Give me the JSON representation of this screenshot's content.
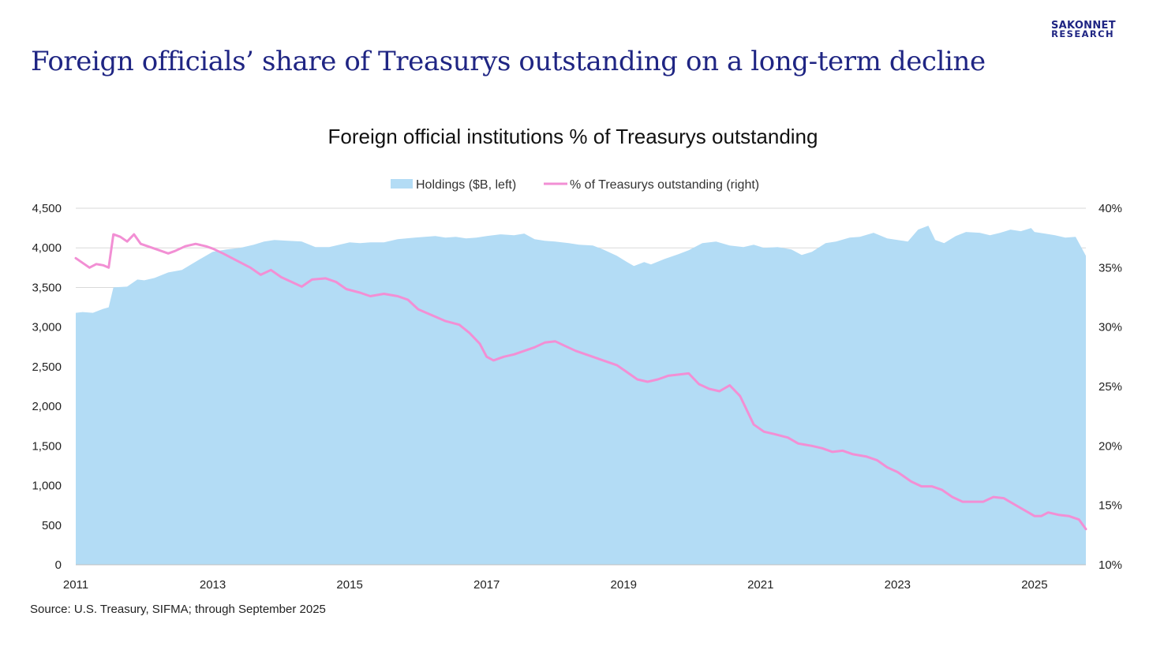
{
  "brand": {
    "line1": "SAKONNET",
    "line2": "RESEARCH"
  },
  "slide_title": "Foreign officials’ share of Treasurys outstanding on a long-term decline",
  "source": "Source: U.S. Treasury, SIFMA; through September 2025",
  "colors": {
    "brand": "#1f2583",
    "area": "#b3dcf5",
    "line": "#f28fd4",
    "grid": "#d9d9d9"
  },
  "chart_data": {
    "type": "area+line",
    "title": "Foreign official institutions % of Treasurys outstanding",
    "legend": [
      "Holdings ($B, left)",
      "% of Treasurys outstanding (right)"
    ],
    "legend_position": "top-center",
    "x_range": [
      2011.0,
      2025.75
    ],
    "x_ticks": [
      2011,
      2013,
      2015,
      2017,
      2019,
      2021,
      2023,
      2025
    ],
    "x_tick_labels": [
      "2011",
      "2013",
      "2015",
      "2017",
      "2019",
      "2021",
      "2023",
      "2025"
    ],
    "y_left": {
      "range": [
        0,
        4500
      ],
      "ticks": [
        0,
        500,
        1000,
        1500,
        2000,
        2500,
        3000,
        3500,
        4000,
        4500
      ],
      "tick_labels": [
        "0",
        "500",
        "1,000",
        "1,500",
        "2,000",
        "2,500",
        "3,000",
        "3,500",
        "4,000",
        "4,500"
      ]
    },
    "y_right": {
      "range": [
        10,
        40
      ],
      "ticks": [
        10,
        15,
        20,
        25,
        30,
        35,
        40
      ],
      "tick_labels": [
        "10%",
        "15%",
        "20%",
        "25%",
        "30%",
        "35%",
        "40%"
      ]
    },
    "grid": true,
    "series": [
      {
        "name": "Holdings ($B, left)",
        "axis": "left",
        "kind": "area",
        "points": [
          [
            2011.0,
            3180
          ],
          [
            2011.1,
            3190
          ],
          [
            2011.25,
            3180
          ],
          [
            2011.4,
            3230
          ],
          [
            2011.48,
            3250
          ],
          [
            2011.55,
            3500
          ],
          [
            2011.75,
            3510
          ],
          [
            2011.9,
            3600
          ],
          [
            2012.0,
            3590
          ],
          [
            2012.15,
            3620
          ],
          [
            2012.35,
            3690
          ],
          [
            2012.55,
            3720
          ],
          [
            2012.8,
            3850
          ],
          [
            2013.0,
            3950
          ],
          [
            2013.2,
            3980
          ],
          [
            2013.4,
            4000
          ],
          [
            2013.6,
            4040
          ],
          [
            2013.75,
            4080
          ],
          [
            2013.9,
            4100
          ],
          [
            2014.1,
            4090
          ],
          [
            2014.3,
            4080
          ],
          [
            2014.5,
            4010
          ],
          [
            2014.7,
            4010
          ],
          [
            2014.85,
            4040
          ],
          [
            2015.0,
            4070
          ],
          [
            2015.15,
            4060
          ],
          [
            2015.3,
            4070
          ],
          [
            2015.5,
            4070
          ],
          [
            2015.7,
            4110
          ],
          [
            2015.95,
            4130
          ],
          [
            2016.1,
            4140
          ],
          [
            2016.25,
            4150
          ],
          [
            2016.4,
            4130
          ],
          [
            2016.55,
            4140
          ],
          [
            2016.7,
            4120
          ],
          [
            2016.85,
            4130
          ],
          [
            2017.0,
            4150
          ],
          [
            2017.2,
            4170
          ],
          [
            2017.4,
            4160
          ],
          [
            2017.55,
            4180
          ],
          [
            2017.7,
            4110
          ],
          [
            2017.85,
            4090
          ],
          [
            2018.0,
            4080
          ],
          [
            2018.2,
            4060
          ],
          [
            2018.35,
            4040
          ],
          [
            2018.55,
            4030
          ],
          [
            2018.7,
            3980
          ],
          [
            2018.9,
            3900
          ],
          [
            2019.05,
            3820
          ],
          [
            2019.15,
            3770
          ],
          [
            2019.3,
            3820
          ],
          [
            2019.4,
            3790
          ],
          [
            2019.6,
            3860
          ],
          [
            2019.8,
            3920
          ],
          [
            2019.95,
            3970
          ],
          [
            2020.15,
            4060
          ],
          [
            2020.35,
            4080
          ],
          [
            2020.55,
            4030
          ],
          [
            2020.75,
            4010
          ],
          [
            2020.9,
            4040
          ],
          [
            2021.05,
            4000
          ],
          [
            2021.25,
            4010
          ],
          [
            2021.45,
            3980
          ],
          [
            2021.6,
            3910
          ],
          [
            2021.75,
            3950
          ],
          [
            2021.95,
            4060
          ],
          [
            2022.1,
            4080
          ],
          [
            2022.3,
            4130
          ],
          [
            2022.45,
            4140
          ],
          [
            2022.65,
            4190
          ],
          [
            2022.85,
            4120
          ],
          [
            2023.0,
            4100
          ],
          [
            2023.15,
            4080
          ],
          [
            2023.3,
            4230
          ],
          [
            2023.45,
            4280
          ],
          [
            2023.55,
            4100
          ],
          [
            2023.68,
            4060
          ],
          [
            2023.85,
            4150
          ],
          [
            2024.0,
            4200
          ],
          [
            2024.2,
            4190
          ],
          [
            2024.35,
            4160
          ],
          [
            2024.5,
            4190
          ],
          [
            2024.65,
            4230
          ],
          [
            2024.8,
            4210
          ],
          [
            2024.95,
            4250
          ],
          [
            2025.0,
            4200
          ],
          [
            2025.15,
            4180
          ],
          [
            2025.3,
            4160
          ],
          [
            2025.45,
            4130
          ],
          [
            2025.6,
            4140
          ],
          [
            2025.75,
            3900
          ]
        ]
      },
      {
        "name": "% of Treasurys outstanding (right)",
        "axis": "right",
        "kind": "line",
        "points": [
          [
            2011.0,
            35.8
          ],
          [
            2011.1,
            35.4
          ],
          [
            2011.2,
            35.0
          ],
          [
            2011.3,
            35.3
          ],
          [
            2011.4,
            35.2
          ],
          [
            2011.48,
            35.0
          ],
          [
            2011.55,
            37.8
          ],
          [
            2011.65,
            37.6
          ],
          [
            2011.75,
            37.2
          ],
          [
            2011.85,
            37.8
          ],
          [
            2011.95,
            37.0
          ],
          [
            2012.05,
            36.8
          ],
          [
            2012.2,
            36.5
          ],
          [
            2012.35,
            36.2
          ],
          [
            2012.45,
            36.4
          ],
          [
            2012.6,
            36.8
          ],
          [
            2012.75,
            37.0
          ],
          [
            2012.9,
            36.8
          ],
          [
            2013.0,
            36.6
          ],
          [
            2013.15,
            36.2
          ],
          [
            2013.35,
            35.6
          ],
          [
            2013.55,
            35.0
          ],
          [
            2013.7,
            34.4
          ],
          [
            2013.85,
            34.8
          ],
          [
            2014.0,
            34.2
          ],
          [
            2014.15,
            33.8
          ],
          [
            2014.3,
            33.4
          ],
          [
            2014.45,
            34.0
          ],
          [
            2014.65,
            34.1
          ],
          [
            2014.8,
            33.8
          ],
          [
            2014.95,
            33.2
          ],
          [
            2015.15,
            32.9
          ],
          [
            2015.3,
            32.6
          ],
          [
            2015.5,
            32.8
          ],
          [
            2015.7,
            32.6
          ],
          [
            2015.85,
            32.3
          ],
          [
            2016.0,
            31.5
          ],
          [
            2016.2,
            31.0
          ],
          [
            2016.4,
            30.5
          ],
          [
            2016.6,
            30.2
          ],
          [
            2016.75,
            29.5
          ],
          [
            2016.9,
            28.6
          ],
          [
            2017.0,
            27.5
          ],
          [
            2017.1,
            27.2
          ],
          [
            2017.25,
            27.5
          ],
          [
            2017.4,
            27.7
          ],
          [
            2017.55,
            28.0
          ],
          [
            2017.7,
            28.3
          ],
          [
            2017.85,
            28.7
          ],
          [
            2018.0,
            28.8
          ],
          [
            2018.15,
            28.4
          ],
          [
            2018.3,
            28.0
          ],
          [
            2018.5,
            27.6
          ],
          [
            2018.7,
            27.2
          ],
          [
            2018.9,
            26.8
          ],
          [
            2019.05,
            26.2
          ],
          [
            2019.2,
            25.6
          ],
          [
            2019.35,
            25.4
          ],
          [
            2019.5,
            25.6
          ],
          [
            2019.65,
            25.9
          ],
          [
            2019.8,
            26.0
          ],
          [
            2019.95,
            26.1
          ],
          [
            2020.1,
            25.2
          ],
          [
            2020.25,
            24.8
          ],
          [
            2020.4,
            24.6
          ],
          [
            2020.55,
            25.1
          ],
          [
            2020.7,
            24.2
          ],
          [
            2020.9,
            21.8
          ],
          [
            2021.05,
            21.2
          ],
          [
            2021.2,
            21.0
          ],
          [
            2021.4,
            20.7
          ],
          [
            2021.55,
            20.2
          ],
          [
            2021.75,
            20.0
          ],
          [
            2021.9,
            19.8
          ],
          [
            2022.05,
            19.5
          ],
          [
            2022.2,
            19.6
          ],
          [
            2022.35,
            19.3
          ],
          [
            2022.55,
            19.1
          ],
          [
            2022.7,
            18.8
          ],
          [
            2022.85,
            18.2
          ],
          [
            2023.0,
            17.8
          ],
          [
            2023.2,
            17.0
          ],
          [
            2023.35,
            16.6
          ],
          [
            2023.5,
            16.6
          ],
          [
            2023.65,
            16.3
          ],
          [
            2023.8,
            15.7
          ],
          [
            2023.95,
            15.3
          ],
          [
            2024.1,
            15.3
          ],
          [
            2024.25,
            15.3
          ],
          [
            2024.4,
            15.7
          ],
          [
            2024.55,
            15.6
          ],
          [
            2024.7,
            15.1
          ],
          [
            2024.85,
            14.6
          ],
          [
            2025.0,
            14.1
          ],
          [
            2025.1,
            14.1
          ],
          [
            2025.2,
            14.4
          ],
          [
            2025.35,
            14.2
          ],
          [
            2025.5,
            14.1
          ],
          [
            2025.65,
            13.8
          ],
          [
            2025.75,
            13.0
          ]
        ]
      }
    ]
  }
}
